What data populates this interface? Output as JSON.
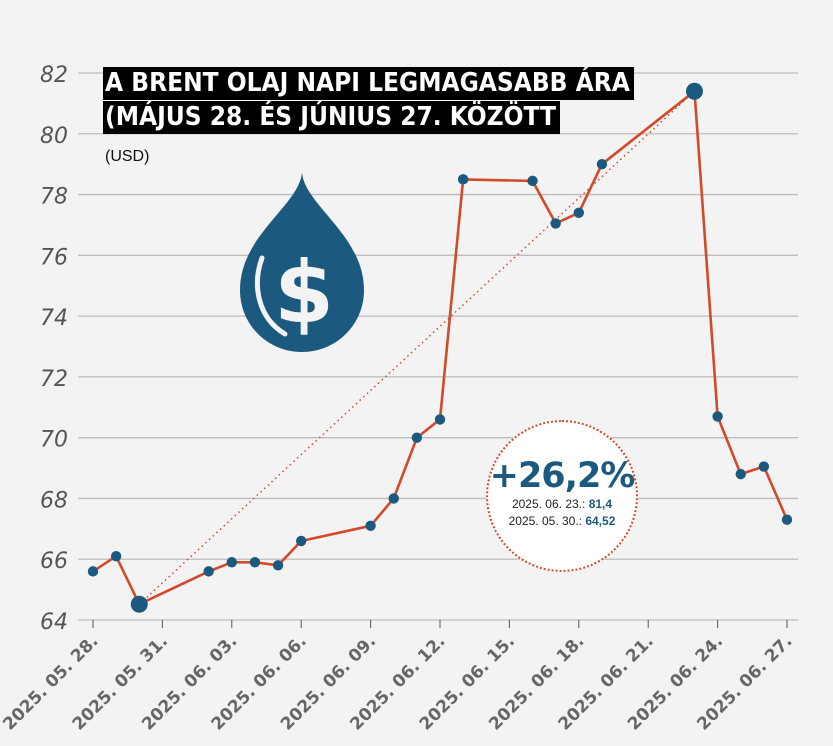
{
  "title_line1": "A BRENT OLAJ NAPI LEGMAGASABB ÁRA",
  "title_line2": "(MÁJUS 28. ÉS JÚNIUS 27. KÖZÖTT",
  "unit": "(USD)",
  "colors": {
    "background": "#f3f3f3",
    "line": "#d24a2a",
    "marker": "#1b5a7e",
    "grid": "#bdbdbd",
    "tick_label": "#555555",
    "drop_icon": "#1b5a7e"
  },
  "icon": "dollar-drop-icon",
  "callout": {
    "percent": "+26,2%",
    "row1_label": "2025. 06. 23.:",
    "row1_value": "81,4",
    "row2_label": "2025. 05. 30.:",
    "row2_value": "64,52"
  },
  "chart_data": {
    "type": "line",
    "title": "A BRENT OLAJ NAPI LEGMAGASABB ÁRA (MÁJUS 28. ÉS JÚNIUS 27. KÖZÖTT",
    "ylabel": "(USD)",
    "ylim": [
      64,
      82
    ],
    "yticks": [
      64,
      66,
      68,
      70,
      72,
      74,
      76,
      78,
      80,
      82
    ],
    "xlim": [
      "2025-05-28",
      "2025-06-27"
    ],
    "xticks": [
      "2025. 05. 28.",
      "2025. 05. 31.",
      "2025. 06. 03.",
      "2025. 06. 06.",
      "2025. 06. 09.",
      "2025. 06. 12.",
      "2025. 06. 15.",
      "2025. 06. 18.",
      "2025. 06. 21.",
      "2025. 06. 24.",
      "2025. 06. 27."
    ],
    "grid": true,
    "x": [
      "2025-05-28",
      "2025-05-29",
      "2025-05-30",
      "2025-06-02",
      "2025-06-03",
      "2025-06-04",
      "2025-06-05",
      "2025-06-06",
      "2025-06-09",
      "2025-06-10",
      "2025-06-11",
      "2025-06-12",
      "2025-06-13",
      "2025-06-16",
      "2025-06-17",
      "2025-06-18",
      "2025-06-19",
      "2025-06-23",
      "2025-06-24",
      "2025-06-25",
      "2025-06-26",
      "2025-06-27"
    ],
    "values": [
      65.6,
      66.1,
      64.52,
      65.6,
      65.9,
      65.9,
      65.8,
      66.6,
      67.1,
      68.0,
      70.0,
      70.6,
      78.5,
      78.45,
      77.05,
      77.4,
      79.0,
      81.4,
      70.7,
      68.8,
      69.05,
      67.3
    ],
    "highlighted_points": [
      {
        "x": "2025-05-30",
        "y": 64.52
      },
      {
        "x": "2025-06-23",
        "y": 81.4
      }
    ],
    "trend_line": {
      "from": {
        "x": "2025-05-30",
        "y": 64.52
      },
      "to": {
        "x": "2025-06-23",
        "y": 81.4
      },
      "style": "dotted"
    }
  }
}
